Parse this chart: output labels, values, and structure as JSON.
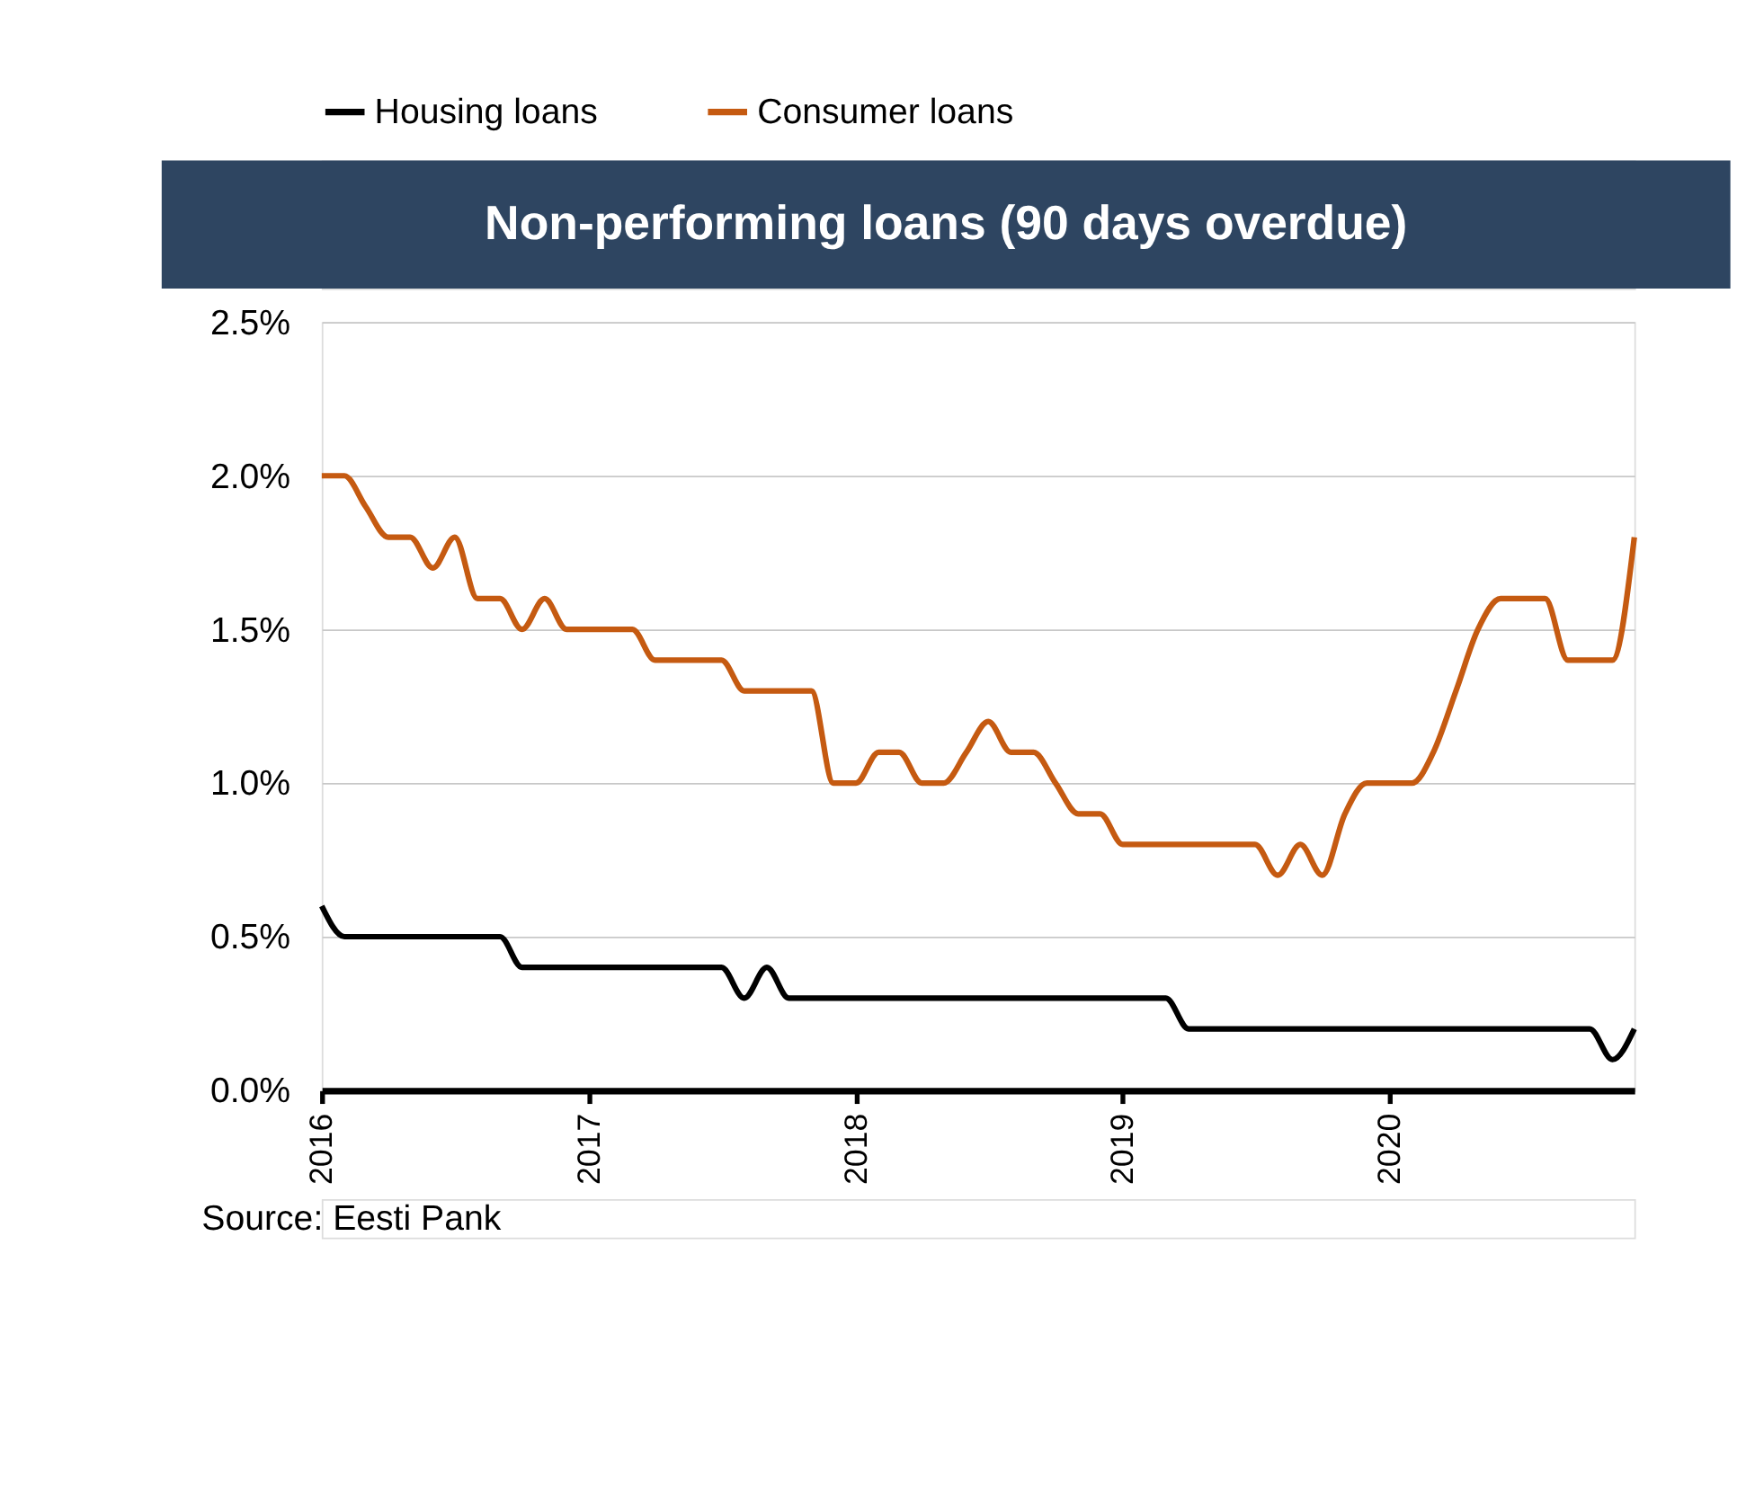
{
  "chart_data": {
    "type": "line",
    "title": "Non-performing loans (90 days overdue)",
    "x": [
      "2016-01",
      "2016-02",
      "2016-03",
      "2016-04",
      "2016-05",
      "2016-06",
      "2016-07",
      "2016-08",
      "2016-09",
      "2016-10",
      "2016-11",
      "2016-12",
      "2017-01",
      "2017-02",
      "2017-03",
      "2017-04",
      "2017-05",
      "2017-06",
      "2017-07",
      "2017-08",
      "2017-09",
      "2017-10",
      "2017-11",
      "2017-12",
      "2018-01",
      "2018-02",
      "2018-03",
      "2018-04",
      "2018-05",
      "2018-06",
      "2018-07",
      "2018-08",
      "2018-09",
      "2018-10",
      "2018-11",
      "2018-12",
      "2019-01",
      "2019-02",
      "2019-03",
      "2019-04",
      "2019-05",
      "2019-06",
      "2019-07",
      "2019-08",
      "2019-09",
      "2019-10",
      "2019-11",
      "2019-12",
      "2020-01",
      "2020-02",
      "2020-03",
      "2020-04",
      "2020-05",
      "2020-06",
      "2020-07",
      "2020-08",
      "2020-09",
      "2020-10",
      "2020-11",
      "2020-12"
    ],
    "series": [
      {
        "name": "Housing loans",
        "color": "#000000",
        "values": [
          0.6,
          0.5,
          0.5,
          0.5,
          0.5,
          0.5,
          0.5,
          0.5,
          0.5,
          0.4,
          0.4,
          0.4,
          0.4,
          0.4,
          0.4,
          0.4,
          0.4,
          0.4,
          0.4,
          0.3,
          0.4,
          0.3,
          0.3,
          0.3,
          0.3,
          0.3,
          0.3,
          0.3,
          0.3,
          0.3,
          0.3,
          0.3,
          0.3,
          0.3,
          0.3,
          0.3,
          0.3,
          0.3,
          0.3,
          0.2,
          0.2,
          0.2,
          0.2,
          0.2,
          0.2,
          0.2,
          0.2,
          0.2,
          0.2,
          0.2,
          0.2,
          0.2,
          0.2,
          0.2,
          0.2,
          0.2,
          0.2,
          0.2,
          0.1,
          0.2
        ]
      },
      {
        "name": "Consumer loans",
        "color": "#c55a11",
        "values": [
          2.0,
          2.0,
          1.9,
          1.8,
          1.8,
          1.7,
          1.8,
          1.6,
          1.6,
          1.5,
          1.6,
          1.5,
          1.5,
          1.5,
          1.5,
          1.4,
          1.4,
          1.4,
          1.4,
          1.3,
          1.3,
          1.3,
          1.3,
          1.0,
          1.0,
          1.1,
          1.1,
          1.0,
          1.0,
          1.1,
          1.2,
          1.1,
          1.1,
          1.0,
          0.9,
          0.9,
          0.8,
          0.8,
          0.8,
          0.8,
          0.8,
          0.8,
          0.8,
          0.7,
          0.8,
          0.7,
          0.9,
          1.0,
          1.0,
          1.0,
          1.1,
          1.3,
          1.5,
          1.6,
          1.6,
          1.6,
          1.4,
          1.4,
          1.4,
          1.8
        ]
      }
    ],
    "xlim": [
      "2016-01",
      "2020-12"
    ],
    "xticks": [
      "2016",
      "2017",
      "2018",
      "2019",
      "2020"
    ],
    "ylim": [
      0,
      2.5
    ],
    "yticks": [
      {
        "value": 0,
        "label": "0.0%"
      },
      {
        "value": 0.5,
        "label": "0.5%"
      },
      {
        "value": 1,
        "label": "1.0%"
      },
      {
        "value": 1.5,
        "label": "1.5%"
      },
      {
        "value": 2,
        "label": "2.0%"
      },
      {
        "value": 2.5,
        "label": "2.5%"
      }
    ],
    "grid": "y",
    "legend": "top",
    "marker": "none",
    "line_style": "solid",
    "annotations": [
      "Source: Eesti Pank"
    ]
  }
}
